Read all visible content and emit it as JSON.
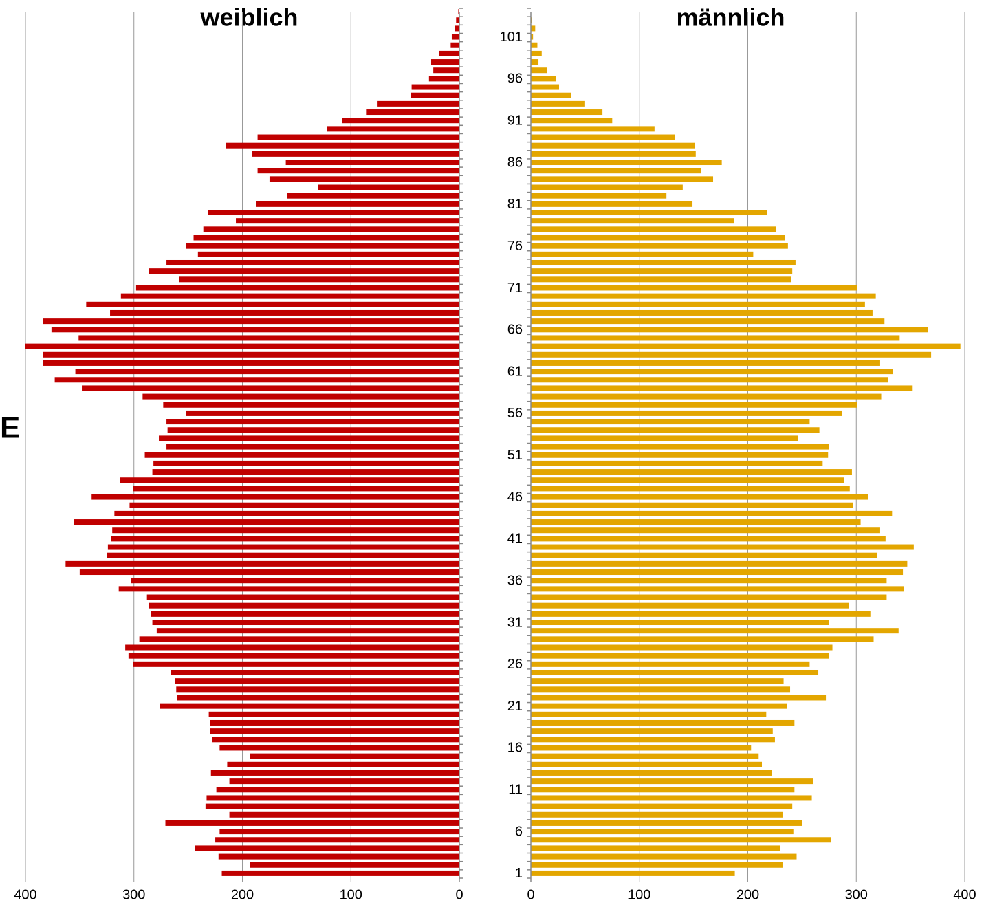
{
  "side_label": "E",
  "chart_data": [
    {
      "type": "hbar",
      "title": "weiblich",
      "color": "#c00000",
      "xlim": [
        400,
        0
      ],
      "xticks": [
        400,
        300,
        200,
        100,
        0
      ],
      "grid": true,
      "values": [
        219,
        193,
        222,
        244,
        225,
        221,
        271,
        212,
        234,
        233,
        224,
        212,
        229,
        214,
        193,
        221,
        228,
        230,
        230,
        231,
        276,
        260,
        261,
        262,
        266,
        301,
        305,
        308,
        295,
        279,
        283,
        284,
        286,
        288,
        314,
        303,
        350,
        363,
        325,
        324,
        321,
        320,
        355,
        318,
        304,
        339,
        301,
        313,
        283,
        282,
        290,
        270,
        277,
        269,
        270,
        252,
        273,
        292,
        348,
        373,
        354,
        384,
        384,
        400,
        351,
        376,
        384,
        322,
        344,
        312,
        298,
        258,
        286,
        270,
        241,
        252,
        245,
        236,
        206,
        232,
        187,
        159,
        130,
        175,
        186,
        160,
        191,
        215,
        186,
        122,
        108,
        86,
        76,
        45,
        44,
        28,
        24,
        26,
        19,
        8,
        7,
        4,
        3,
        1
      ]
    },
    {
      "type": "hbar",
      "title": "männlich",
      "color": "#e3a600",
      "xlim": [
        0,
        400
      ],
      "xticks": [
        0,
        100,
        200,
        300,
        400
      ],
      "grid": true,
      "categories": [
        1,
        null,
        null,
        null,
        null,
        6,
        null,
        null,
        null,
        null,
        11,
        null,
        null,
        null,
        null,
        16,
        null,
        null,
        null,
        null,
        21,
        null,
        null,
        null,
        null,
        26,
        null,
        null,
        null,
        null,
        31,
        null,
        null,
        null,
        null,
        36,
        null,
        null,
        null,
        null,
        41,
        null,
        null,
        null,
        null,
        46,
        null,
        null,
        null,
        null,
        51,
        null,
        null,
        null,
        null,
        56,
        null,
        null,
        null,
        null,
        61,
        null,
        null,
        null,
        null,
        66,
        null,
        null,
        null,
        null,
        71,
        null,
        null,
        null,
        null,
        76,
        null,
        null,
        null,
        null,
        81,
        null,
        null,
        null,
        null,
        86,
        null,
        null,
        null,
        null,
        91,
        null,
        null,
        null,
        null,
        96,
        null,
        null,
        null,
        null,
        101,
        null,
        null,
        null
      ],
      "values": [
        188,
        232,
        245,
        230,
        277,
        242,
        250,
        232,
        241,
        259,
        243,
        260,
        222,
        213,
        210,
        203,
        225,
        223,
        243,
        217,
        236,
        272,
        239,
        233,
        265,
        257,
        275,
        278,
        316,
        339,
        275,
        313,
        293,
        328,
        344,
        328,
        343,
        347,
        319,
        353,
        327,
        322,
        304,
        333,
        297,
        311,
        294,
        289,
        296,
        269,
        274,
        275,
        246,
        266,
        257,
        287,
        301,
        323,
        352,
        329,
        334,
        322,
        369,
        396,
        340,
        366,
        326,
        315,
        308,
        318,
        301,
        240,
        241,
        244,
        205,
        237,
        234,
        226,
        187,
        218,
        149,
        125,
        140,
        168,
        157,
        176,
        152,
        151,
        133,
        114,
        75,
        66,
        50,
        37,
        26,
        23,
        15,
        7,
        10,
        6,
        2,
        4,
        1,
        0
      ]
    }
  ]
}
